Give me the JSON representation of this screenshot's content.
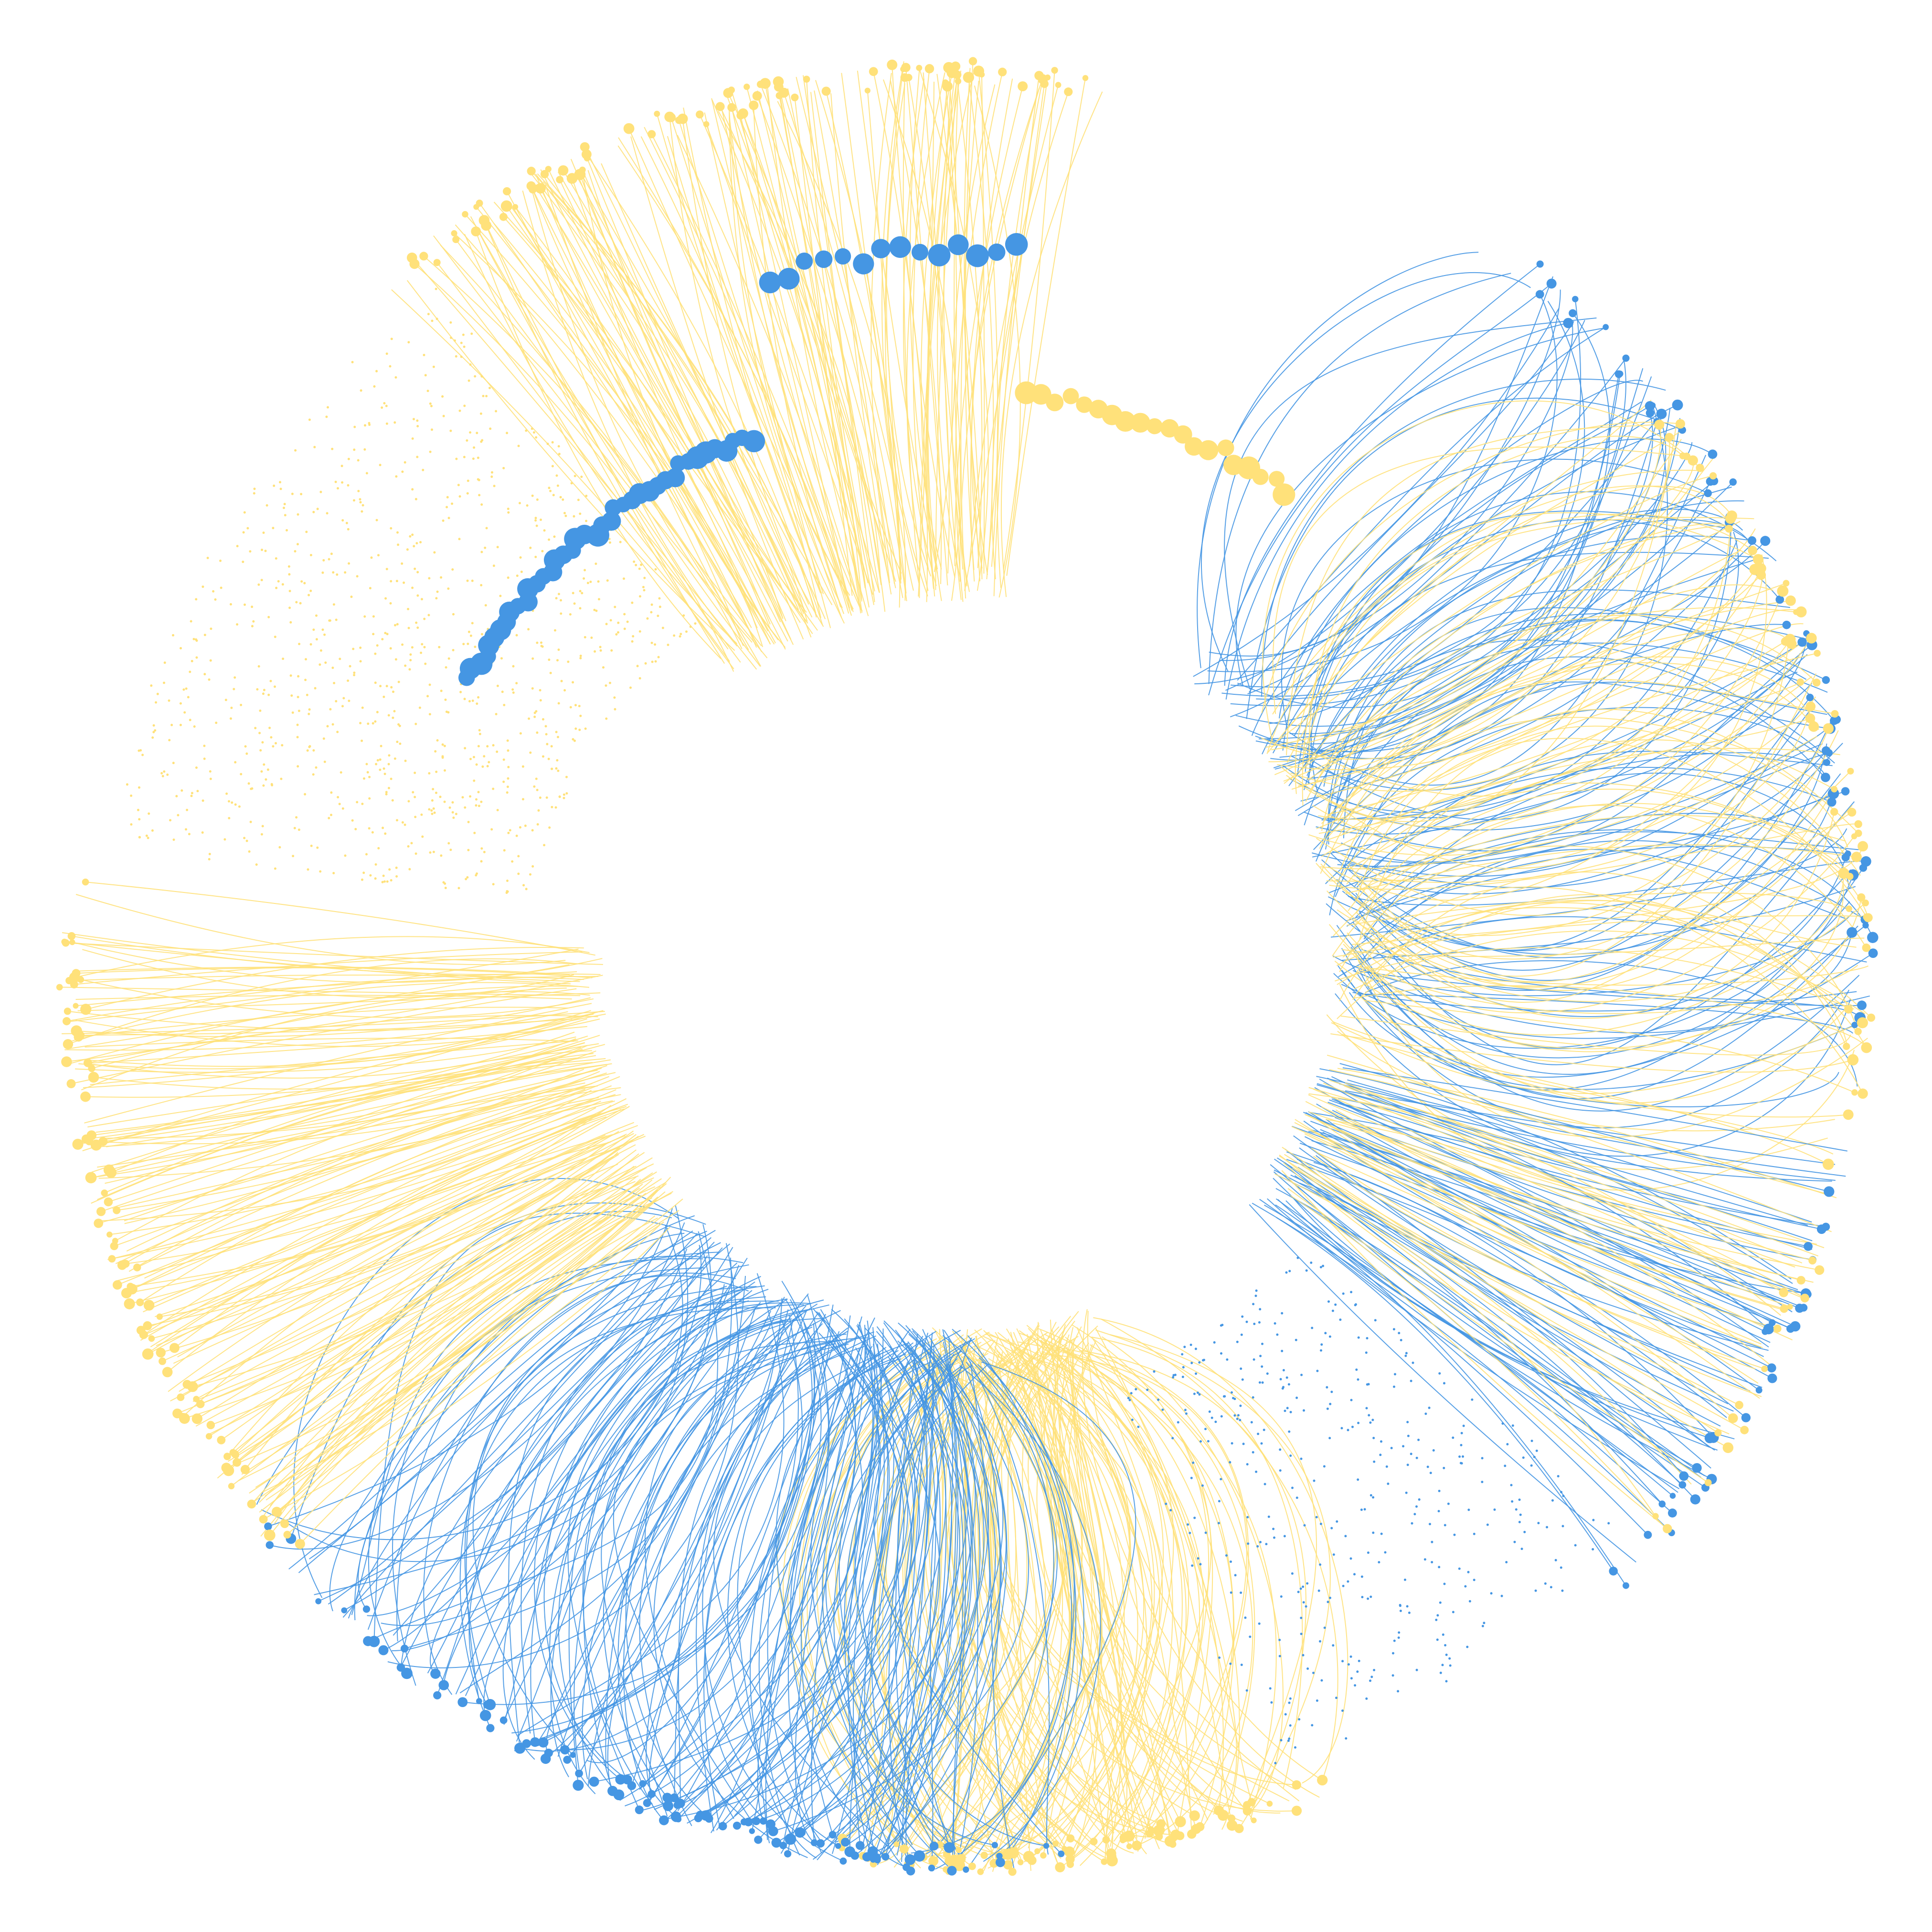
{
  "colors": {
    "yellow": "#FFE17A",
    "blue": "#4596E3",
    "background": "#FFFFFF"
  },
  "groups": [
    {
      "name": "top-yellow-fan",
      "color": "yellow",
      "from_deg": -128,
      "to_deg": -84,
      "kind": "fan",
      "count": 170
    },
    {
      "name": "top-blue-dots",
      "color": "blue",
      "from_deg": -106,
      "to_deg": -86,
      "kind": "dots",
      "count": 14
    },
    {
      "name": "top-right-yellow-dots",
      "color": "yellow",
      "from_deg": -84,
      "to_deg": -56,
      "kind": "dots",
      "count": 20
    },
    {
      "name": "right-blue-fan",
      "color": "blue",
      "from_deg": -52,
      "to_deg": 5,
      "kind": "loops",
      "count": 130
    },
    {
      "name": "right-yellow-fan",
      "color": "yellow",
      "from_deg": -40,
      "to_deg": 10,
      "kind": "loops",
      "count": 110
    },
    {
      "name": "lower-right-blue-fan",
      "color": "blue",
      "from_deg": 15,
      "to_deg": 40,
      "kind": "fan",
      "count": 70
    },
    {
      "name": "lower-right-yellow-fan",
      "color": "yellow",
      "from_deg": 15,
      "to_deg": 35,
      "kind": "fan",
      "count": 40
    },
    {
      "name": "bottom-yellow-loops",
      "color": "yellow",
      "from_deg": 70,
      "to_deg": 95,
      "kind": "loops",
      "count": 160
    },
    {
      "name": "bottom-blue-loops",
      "color": "blue",
      "from_deg": 88,
      "to_deg": 118,
      "kind": "loops",
      "count": 150
    },
    {
      "name": "bottom-left-blue-loops",
      "color": "blue",
      "from_deg": 118,
      "to_deg": 140,
      "kind": "loops",
      "count": 60
    },
    {
      "name": "left-yellow-fan",
      "color": "yellow",
      "from_deg": 140,
      "to_deg": 182,
      "kind": "fan",
      "count": 170
    },
    {
      "name": "upper-left-blue-arc",
      "color": "blue",
      "from_deg": -150,
      "to_deg": -112,
      "kind": "dots",
      "count": 40
    },
    {
      "name": "upper-left-yellow-cloud",
      "color": "yellow",
      "from_deg": -172,
      "to_deg": -128,
      "kind": "cloud",
      "count": 900
    },
    {
      "name": "lower-right-blue-cloud",
      "color": "blue",
      "from_deg": 40,
      "to_deg": 70,
      "kind": "cloud",
      "count": 400
    }
  ]
}
